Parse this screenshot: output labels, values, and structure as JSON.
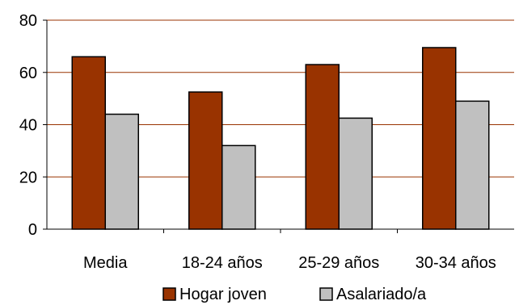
{
  "chart_data": {
    "type": "bar",
    "categories": [
      "Media",
      "18-24 años",
      "25-29 años",
      "30-34 años"
    ],
    "series": [
      {
        "name": "Hogar joven",
        "values": [
          66,
          52.5,
          63,
          69.5
        ],
        "color": "#993300"
      },
      {
        "name": "Asalariado/a",
        "values": [
          44,
          32,
          42.5,
          49
        ],
        "color": "#c0c0c0"
      }
    ],
    "ylim": [
      0,
      80
    ],
    "yticks": [
      0,
      20,
      40,
      60,
      80
    ],
    "grid": true,
    "gridline_color": "#993300",
    "legend_position": "bottom"
  }
}
